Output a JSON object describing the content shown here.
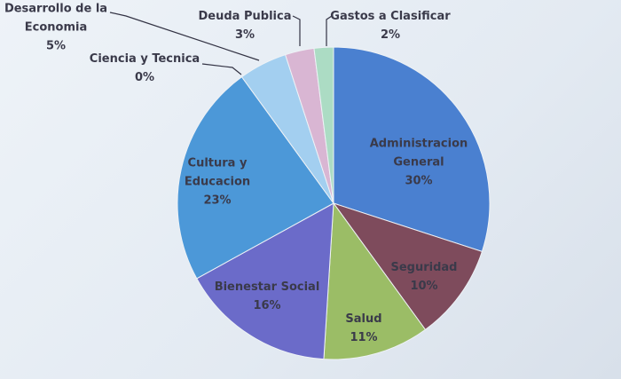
{
  "chart_data": {
    "type": "pie",
    "categories": [
      "Administracion General",
      "Seguridad",
      "Salud",
      "Bienestar Social",
      "Cultura y Educacion",
      "Ciencia y Tecnica",
      "Desarrollo de la Economia",
      "Deuda Publica",
      "Gastos a Clasificar"
    ],
    "values": [
      30,
      10,
      11,
      16,
      23,
      0,
      5,
      3,
      2
    ],
    "value_labels": [
      "30%",
      "10%",
      "11%",
      "16%",
      "23%",
      "0%",
      "5%",
      "3%",
      "2%"
    ],
    "colors": [
      "#4a80d0",
      "#7e4b5c",
      "#9bbd66",
      "#6b6bc9",
      "#4c98d8",
      "#5aa0d8",
      "#a3cff0",
      "#d9b6d3",
      "#acdcc4"
    ]
  }
}
